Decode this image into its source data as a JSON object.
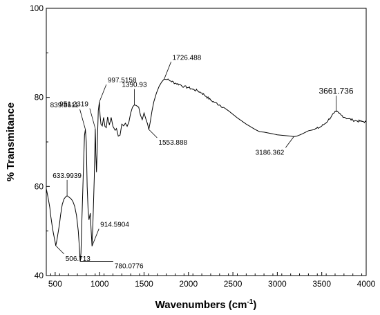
{
  "chart_data": {
    "type": "line",
    "title": "",
    "xlabel": "Wavenumbers (cm",
    "xlabel_sup": "-1",
    "xlabel_close": ")",
    "ylabel": "% Transmitance",
    "xlim": [
      400,
      4000
    ],
    "ylim": [
      40,
      100
    ],
    "xticks": [
      500,
      1000,
      1500,
      2000,
      2500,
      3000,
      3500,
      4000
    ],
    "yticks": [
      40,
      60,
      80,
      100
    ],
    "grid": false,
    "series": [
      {
        "color": "#000000",
        "points": [
          [
            400,
            59.5
          ],
          [
            420,
            57.5
          ],
          [
            440,
            55.2
          ],
          [
            460,
            52.0
          ],
          [
            480,
            49.5
          ],
          [
            500,
            47.5
          ],
          [
            506.713,
            46.7
          ],
          [
            520,
            48.0
          ],
          [
            540,
            50.5
          ],
          [
            560,
            53.5
          ],
          [
            580,
            56.0
          ],
          [
            600,
            57.2
          ],
          [
            620,
            57.7
          ],
          [
            633.9939,
            57.9
          ],
          [
            650,
            57.7
          ],
          [
            680,
            57.2
          ],
          [
            700,
            56.6
          ],
          [
            720,
            55.5
          ],
          [
            740,
            53.5
          ],
          [
            760,
            50.0
          ],
          [
            775,
            45.5
          ],
          [
            780.0776,
            43.2
          ],
          [
            790,
            45.0
          ],
          [
            800,
            52.0
          ],
          [
            815,
            62.0
          ],
          [
            830,
            71.5
          ],
          [
            839.8611,
            72.8
          ],
          [
            850,
            70.0
          ],
          [
            860,
            60.0
          ],
          [
            870,
            55.0
          ],
          [
            880,
            52.5
          ],
          [
            895,
            54.0
          ],
          [
            905,
            50.0
          ],
          [
            914.5904,
            46.6
          ],
          [
            925,
            52.0
          ],
          [
            940,
            62.0
          ],
          [
            951.2319,
            73.0
          ],
          [
            958,
            67.0
          ],
          [
            965,
            63.2
          ],
          [
            975,
            70.0
          ],
          [
            985,
            77.0
          ],
          [
            997.5158,
            79.0
          ],
          [
            1005,
            76.0
          ],
          [
            1015,
            74.0
          ],
          [
            1030,
            73.6
          ],
          [
            1045,
            75.5
          ],
          [
            1060,
            73.5
          ],
          [
            1075,
            73.2
          ],
          [
            1090,
            75.6
          ],
          [
            1110,
            73.8
          ],
          [
            1130,
            75.5
          ],
          [
            1150,
            73.5
          ],
          [
            1175,
            72.6
          ],
          [
            1190,
            73.0
          ],
          [
            1210,
            71.3
          ],
          [
            1230,
            71.5
          ],
          [
            1250,
            74.0
          ],
          [
            1270,
            73.6
          ],
          [
            1290,
            74.2
          ],
          [
            1310,
            73.5
          ],
          [
            1330,
            74.5
          ],
          [
            1350,
            76.5
          ],
          [
            1370,
            77.8
          ],
          [
            1390.93,
            78.3
          ],
          [
            1410,
            78.2
          ],
          [
            1440,
            77.8
          ],
          [
            1460,
            76.0
          ],
          [
            1480,
            75.0
          ],
          [
            1500,
            76.5
          ],
          [
            1520,
            75.2
          ],
          [
            1540,
            74.0
          ],
          [
            1553.888,
            72.8
          ],
          [
            1570,
            74.5
          ],
          [
            1590,
            77.0
          ],
          [
            1610,
            79.0
          ],
          [
            1640,
            81.0
          ],
          [
            1670,
            82.5
          ],
          [
            1700,
            83.5
          ],
          [
            1726.488,
            84.1
          ],
          [
            1760,
            84.0
          ],
          [
            1800,
            83.7
          ],
          [
            1850,
            83.2
          ],
          [
            1900,
            82.9
          ],
          [
            1950,
            82.4
          ],
          [
            2000,
            82.2
          ],
          [
            2050,
            81.8
          ],
          [
            2100,
            81.5
          ],
          [
            2150,
            81.0
          ],
          [
            2200,
            80.2
          ],
          [
            2250,
            79.4
          ],
          [
            2300,
            78.8
          ],
          [
            2350,
            78.3
          ],
          [
            2400,
            77.7
          ],
          [
            2450,
            77.0
          ],
          [
            2500,
            76.2
          ],
          [
            2550,
            75.4
          ],
          [
            2600,
            74.7
          ],
          [
            2650,
            74.0
          ],
          [
            2700,
            73.4
          ],
          [
            2750,
            72.8
          ],
          [
            2800,
            72.3
          ],
          [
            2850,
            72.2
          ],
          [
            2900,
            72.0
          ],
          [
            2950,
            71.8
          ],
          [
            3000,
            71.6
          ],
          [
            3050,
            71.5
          ],
          [
            3100,
            71.4
          ],
          [
            3150,
            71.3
          ],
          [
            3186.362,
            71.2
          ],
          [
            3220,
            71.3
          ],
          [
            3280,
            71.8
          ],
          [
            3350,
            72.5
          ],
          [
            3420,
            72.8
          ],
          [
            3480,
            73.3
          ],
          [
            3530,
            74.0
          ],
          [
            3570,
            74.8
          ],
          [
            3610,
            75.8
          ],
          [
            3640,
            76.5
          ],
          [
            3661.736,
            76.8
          ],
          [
            3690,
            76.5
          ],
          [
            3720,
            76.0
          ],
          [
            3760,
            75.5
          ],
          [
            3800,
            75.2
          ],
          [
            3850,
            74.9
          ],
          [
            3900,
            74.7
          ],
          [
            3950,
            74.6
          ],
          [
            4000,
            74.5
          ]
        ]
      }
    ],
    "annotations": [
      {
        "label": "506.713",
        "x": 506.713,
        "y": 46.7,
        "pos": "below-right"
      },
      {
        "label": "633.9939",
        "x": 633.9939,
        "y": 57.9,
        "pos": "above"
      },
      {
        "label": "780.0776",
        "x": 780.0776,
        "y": 43.2,
        "pos": "right"
      },
      {
        "label": "839.8611",
        "x": 839.8611,
        "y": 72.8,
        "pos": "above-left"
      },
      {
        "label": "914.5904",
        "x": 914.5904,
        "y": 46.6,
        "pos": "above-right"
      },
      {
        "label": "951.2319",
        "x": 951.2319,
        "y": 73.0,
        "pos": "above-left"
      },
      {
        "label": "997.5158",
        "x": 997.5158,
        "y": 79.0,
        "pos": "above-right"
      },
      {
        "label": "1390.93",
        "x": 1390.93,
        "y": 78.3,
        "pos": "above"
      },
      {
        "label": "1553.888",
        "x": 1553.888,
        "y": 72.8,
        "pos": "below-right"
      },
      {
        "label": "1726.488",
        "x": 1726.488,
        "y": 84.1,
        "pos": "above-right"
      },
      {
        "label": "3186.362",
        "x": 3186.362,
        "y": 71.2,
        "pos": "below-left"
      },
      {
        "label": "3661.736",
        "x": 3661.736,
        "y": 76.8,
        "pos": "above",
        "big": true
      }
    ]
  }
}
